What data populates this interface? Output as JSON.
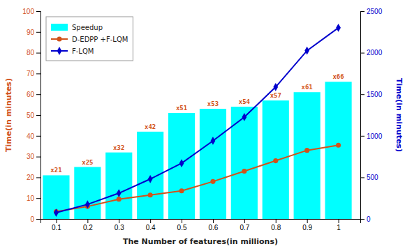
{
  "chart_data": {
    "type": "bar",
    "xlabel": "The Number of features(in millions)",
    "ylabel": "Time(in minutes)",
    "y2label": "Time(in minutes)",
    "x": [
      0.1,
      0.2,
      0.3,
      0.4,
      0.5,
      0.6,
      0.7,
      0.8,
      0.9,
      1.0
    ],
    "xlim": [
      0.05,
      1.07
    ],
    "xticks": [
      0.1,
      0.2,
      0.3,
      0.4,
      0.5,
      0.6,
      0.7,
      0.8,
      0.9,
      1.0
    ],
    "ylim": [
      0,
      100
    ],
    "yticks": [
      0,
      10,
      20,
      30,
      40,
      50,
      60,
      70,
      80,
      90,
      100
    ],
    "y2lim": [
      0,
      2500
    ],
    "y2ticks": [
      0,
      500,
      1000,
      1500,
      2000,
      2500
    ],
    "grid": false,
    "legend": "upper left",
    "series": [
      {
        "name": "Speedup",
        "type": "bar",
        "color": "#00FFFF",
        "values": [
          21,
          25,
          32,
          42,
          51,
          53,
          54,
          57,
          61,
          66
        ],
        "data_labels": true,
        "value_labels": [
          "x21",
          "x25",
          "x32",
          "x42",
          "x51",
          "x53",
          "x54",
          "x57",
          "x61",
          "x66"
        ]
      },
      {
        "name": "D-EDPP +F-LQM",
        "type": "line",
        "color": "#D2521A",
        "marker": "circle",
        "values": [
          3.5,
          6.0,
          9.5,
          11.5,
          13.5,
          18.0,
          23.0,
          28.0,
          33.0,
          35.5
        ]
      },
      {
        "name": "F-LQM",
        "type": "line",
        "axis": "y2",
        "color": "#0000CD",
        "marker": "diamond",
        "values": [
          75,
          175,
          310,
          480,
          670,
          940,
          1225,
          1587,
          2025,
          2300
        ]
      }
    ]
  }
}
